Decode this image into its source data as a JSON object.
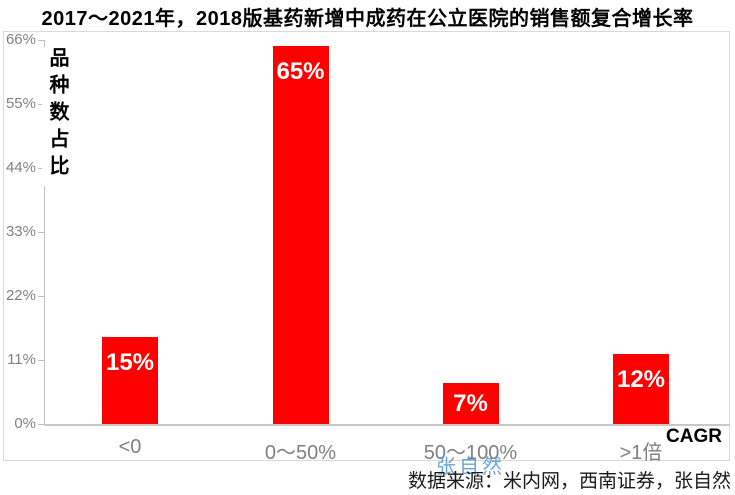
{
  "title": "2017～2021年，2018版基药新增中成药在公立医院的销售额复合增长率",
  "source_note": "数据来源：米内网，西南证券，张自然",
  "watermark": "张自然",
  "chart_data": {
    "type": "bar",
    "title": "2017～2021年，2018版基药新增中成药在公立医院的销售额复合增长率",
    "categories": [
      "<0",
      "0～50%",
      "50～100%",
      ">1倍"
    ],
    "values": [
      15,
      65,
      7,
      12
    ],
    "bar_labels": [
      "15%",
      "65%",
      "7%",
      "12%"
    ],
    "ylabel": "品种数占比",
    "xlabel": "CAGR",
    "ylim": [
      0,
      66
    ],
    "ytick_values": [
      0,
      11,
      22,
      33,
      44,
      55,
      66
    ],
    "ytick_labels": [
      "0%",
      "11%",
      "22%",
      "33%",
      "44%",
      "55%",
      "66%"
    ],
    "grid": false,
    "legend_position": "none",
    "bar_color": "#FF0000",
    "bar_label_color": "#FFFFFF",
    "axis_color": "#BFBFBF",
    "tick_label_color": "#808080"
  },
  "colors": {
    "bar_red": "#FF0000",
    "watermark_blue": "#5B9BD5",
    "frame_border": "#D9D9D9",
    "axis_gray": "#BFBFBF",
    "text_gray": "#808080"
  }
}
